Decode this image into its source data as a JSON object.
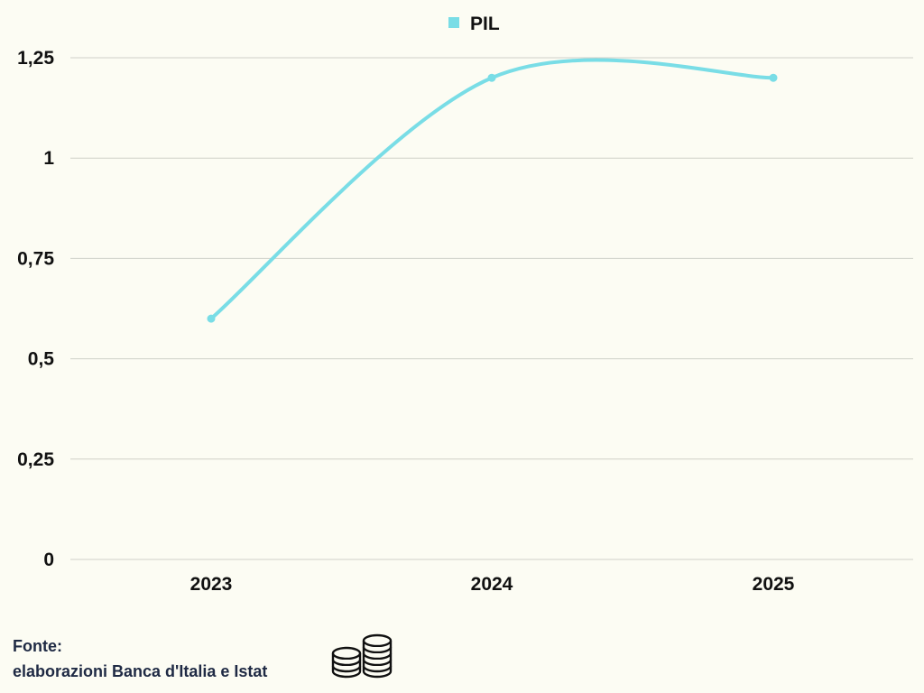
{
  "chart_data": {
    "type": "line",
    "categories": [
      "2023",
      "2024",
      "2025"
    ],
    "series": [
      {
        "name": "PIL",
        "values": [
          0.6,
          1.2,
          1.2
        ]
      }
    ],
    "ylim": [
      0,
      1.25
    ],
    "yticks": [
      "0",
      "0,25",
      "0,5",
      "0,75",
      "1",
      "1,25"
    ],
    "ytick_values": [
      0,
      0.25,
      0.5,
      0.75,
      1,
      1.25
    ],
    "grid": true,
    "legend_position": "top-center",
    "colors": {
      "series": "#79dde6",
      "background": "#fcfcf3",
      "grid": "#cfd0c8"
    }
  },
  "source": {
    "label": "Fonte:",
    "text": "elaborazioni Banca d'Italia e Istat",
    "icon": "coins-icon"
  }
}
